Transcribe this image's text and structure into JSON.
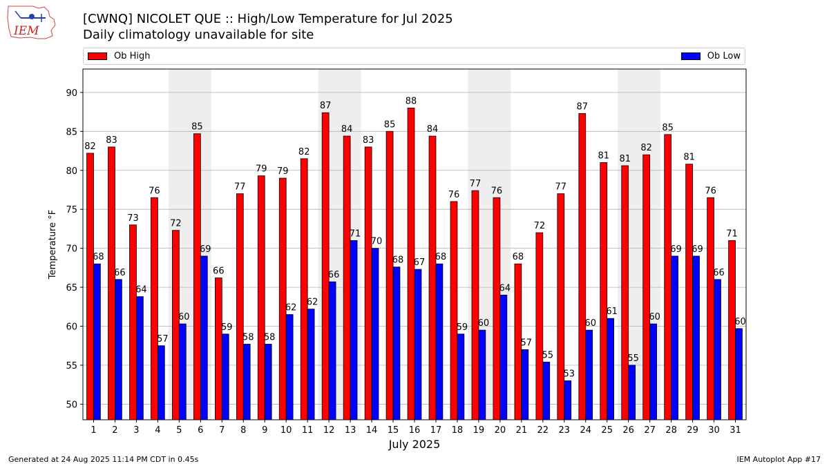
{
  "header": {
    "title_line1": "[CWNQ] NICOLET  QUE :: High/Low Temperature for Jul 2025",
    "title_line2": "Daily climatology unavailable for site",
    "logo_text": "IEM"
  },
  "legend": {
    "high_label": "Ob High",
    "low_label": "Ob Low"
  },
  "footer": {
    "left": "Generated at 24 Aug 2025 11:14 PM CDT in 0.45s",
    "right": "IEM Autoplot App #17"
  },
  "colors": {
    "high": "#ff0000",
    "low": "#0000ff",
    "weekend_band": "#eeeeee",
    "grid": "#b0b0b0"
  },
  "chart_data": {
    "type": "bar",
    "title": "[CWNQ] NICOLET  QUE :: High/Low Temperature for Jul 2025",
    "subtitle": "Daily climatology unavailable for site",
    "xlabel": "July 2025",
    "ylabel": "Temperature °F",
    "ylim": [
      48,
      93
    ],
    "yticks": [
      50,
      55,
      60,
      65,
      70,
      75,
      80,
      85,
      90
    ],
    "grid": "horizontal",
    "legend_position": "top",
    "categories": [
      "1",
      "2",
      "3",
      "4",
      "5",
      "6",
      "7",
      "8",
      "9",
      "10",
      "11",
      "12",
      "13",
      "14",
      "15",
      "16",
      "17",
      "18",
      "19",
      "20",
      "21",
      "22",
      "23",
      "24",
      "25",
      "26",
      "27",
      "28",
      "29",
      "30",
      "31"
    ],
    "shaded_days": [
      [
        "5",
        "6"
      ],
      [
        "12",
        "13"
      ],
      [
        "19",
        "20"
      ],
      [
        "26",
        "27"
      ]
    ],
    "series": [
      {
        "name": "Ob High",
        "color": "#ff0000",
        "values": [
          82.2,
          83,
          73,
          76.5,
          72.3,
          84.7,
          66.2,
          77,
          79.3,
          79,
          81.5,
          87.4,
          84.4,
          83,
          85,
          88,
          84.4,
          76,
          77.4,
          76.5,
          68,
          72,
          77,
          87.3,
          81,
          80.6,
          82,
          84.6,
          80.8,
          76.5,
          71
        ],
        "labels": [
          "82",
          "83",
          "73",
          "76",
          "72",
          "85",
          "66",
          "77",
          "79",
          "79",
          "82",
          "87",
          "84",
          "83",
          "85",
          "88",
          "84",
          "76",
          "77",
          "76",
          "68",
          "72",
          "77",
          "87",
          "81",
          "81",
          "82",
          "85",
          "81",
          "76",
          "71"
        ]
      },
      {
        "name": "Ob Low",
        "color": "#0000ff",
        "values": [
          68,
          66,
          63.8,
          57.5,
          60.3,
          69,
          59,
          57.7,
          57.7,
          61.5,
          62.2,
          65.7,
          71,
          70,
          67.6,
          67.3,
          68,
          59,
          59.5,
          64,
          57,
          55.4,
          53,
          59.5,
          61,
          55,
          60.3,
          69,
          69,
          66,
          59.7
        ],
        "labels": [
          "68",
          "66",
          "64",
          "57",
          "60",
          "69",
          "59",
          "58",
          "58",
          "62",
          "62",
          "66",
          "71",
          "70",
          "68",
          "67",
          "68",
          "59",
          "60",
          "64",
          "57",
          "55",
          "53",
          "60",
          "61",
          "55",
          "60",
          "69",
          "69",
          "66",
          "60"
        ]
      }
    ]
  }
}
